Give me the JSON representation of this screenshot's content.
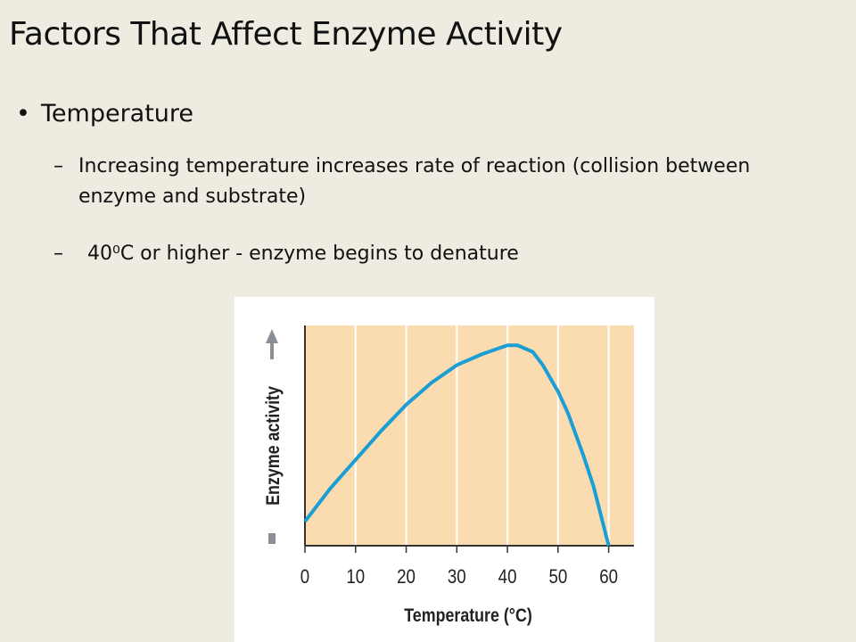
{
  "title": "Factors That Affect Enzyme Activity",
  "bullets": [
    {
      "text": "Temperature",
      "sub": [
        "Increasing temperature increases rate of reaction (collision between enzyme and substrate)",
        "40⁰C or higher - enzyme begins to denature"
      ]
    }
  ],
  "chart_data": {
    "type": "line",
    "x_label": "Temperature (°C)",
    "y_label": "Enzyme activity",
    "x": [
      0,
      5,
      10,
      15,
      20,
      25,
      30,
      35,
      40,
      42,
      45,
      47,
      50,
      52,
      55,
      57,
      60
    ],
    "values": [
      0.11,
      0.26,
      0.39,
      0.52,
      0.64,
      0.74,
      0.82,
      0.87,
      0.91,
      0.91,
      0.88,
      0.82,
      0.7,
      0.6,
      0.41,
      0.27,
      0
    ],
    "color": "#1a9ed4",
    "plot_background": "#fbdcb0",
    "xlim": [
      0,
      65
    ],
    "xticks": [
      0,
      10,
      20,
      30,
      40,
      50,
      60
    ],
    "ylim": [
      0,
      1
    ],
    "grid": true
  }
}
